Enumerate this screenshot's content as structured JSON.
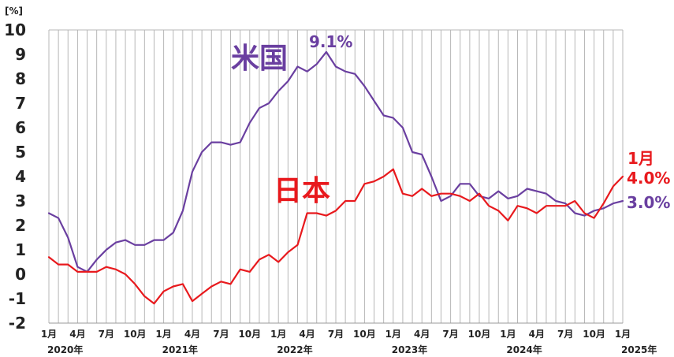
{
  "chart_data": {
    "type": "line",
    "unit_label": "[%]",
    "ylim": [
      -2,
      10
    ],
    "yticks": [
      "10",
      "9",
      "8",
      "7",
      "6",
      "5",
      "4",
      "3",
      "2",
      "1",
      "0",
      "-1",
      "-2"
    ],
    "grid": "vertical monthly lines and y ticks",
    "x": [
      "2020-01",
      "2020-02",
      "2020-03",
      "2020-04",
      "2020-05",
      "2020-06",
      "2020-07",
      "2020-08",
      "2020-09",
      "2020-10",
      "2020-11",
      "2020-12",
      "2021-01",
      "2021-02",
      "2021-03",
      "2021-04",
      "2021-05",
      "2021-06",
      "2021-07",
      "2021-08",
      "2021-09",
      "2021-10",
      "2021-11",
      "2021-12",
      "2022-01",
      "2022-02",
      "2022-03",
      "2022-04",
      "2022-05",
      "2022-06",
      "2022-07",
      "2022-08",
      "2022-09",
      "2022-10",
      "2022-11",
      "2022-12",
      "2023-01",
      "2023-02",
      "2023-03",
      "2023-04",
      "2023-05",
      "2023-06",
      "2023-07",
      "2023-08",
      "2023-09",
      "2023-10",
      "2023-11",
      "2023-12",
      "2024-01",
      "2024-02",
      "2024-03",
      "2024-04",
      "2024-05",
      "2024-06",
      "2024-07",
      "2024-08",
      "2024-09",
      "2024-10",
      "2024-11",
      "2024-12",
      "2025-01"
    ],
    "x_tick_labels": [
      "1月",
      "4月",
      "7月",
      "10月",
      "1月",
      "4月",
      "7月",
      "10月",
      "1月",
      "4月",
      "7月",
      "10月",
      "1月",
      "4月",
      "7月",
      "10月",
      "1月",
      "4月",
      "7月",
      "10月",
      "1月"
    ],
    "year_labels": [
      {
        "text": "2020年",
        "month_index": 0
      },
      {
        "text": "2021年",
        "month_index": 12
      },
      {
        "text": "2022年",
        "month_index": 24
      },
      {
        "text": "2023年",
        "month_index": 36
      },
      {
        "text": "2024年",
        "month_index": 48
      },
      {
        "text": "2025年",
        "month_index": 60
      }
    ],
    "series": [
      {
        "name": "米国",
        "color": "#6a3fa0",
        "values": [
          2.5,
          2.3,
          1.5,
          0.3,
          0.1,
          0.6,
          1.0,
          1.3,
          1.4,
          1.2,
          1.2,
          1.4,
          1.4,
          1.7,
          2.6,
          4.2,
          5.0,
          5.4,
          5.4,
          5.3,
          5.4,
          6.2,
          6.8,
          7.0,
          7.5,
          7.9,
          8.5,
          8.3,
          8.6,
          9.1,
          8.5,
          8.3,
          8.2,
          7.7,
          7.1,
          6.5,
          6.4,
          6.0,
          5.0,
          4.9,
          4.0,
          3.0,
          3.2,
          3.7,
          3.7,
          3.2,
          3.1,
          3.4,
          3.1,
          3.2,
          3.5,
          3.4,
          3.3,
          3.0,
          2.9,
          2.5,
          2.4,
          2.6,
          2.7,
          2.9,
          3.0
        ]
      },
      {
        "name": "日本",
        "color": "#e8191d",
        "values": [
          0.7,
          0.4,
          0.4,
          0.1,
          0.1,
          0.1,
          0.3,
          0.2,
          0.0,
          -0.4,
          -0.9,
          -1.2,
          -0.7,
          -0.5,
          -0.4,
          -1.1,
          -0.8,
          -0.5,
          -0.3,
          -0.4,
          0.2,
          0.1,
          0.6,
          0.8,
          0.5,
          0.9,
          1.2,
          2.5,
          2.5,
          2.4,
          2.6,
          3.0,
          3.0,
          3.7,
          3.8,
          4.0,
          4.3,
          3.3,
          3.2,
          3.5,
          3.2,
          3.3,
          3.3,
          3.2,
          3.0,
          3.3,
          2.8,
          2.6,
          2.2,
          2.8,
          2.7,
          2.5,
          2.8,
          2.8,
          2.8,
          3.0,
          2.5,
          2.3,
          2.9,
          3.6,
          4.0
        ]
      }
    ],
    "annotations": {
      "us_peak": "9.1%",
      "japan_latest_month": "1月",
      "japan_latest": "4.0%",
      "us_latest": "3.0%"
    }
  }
}
